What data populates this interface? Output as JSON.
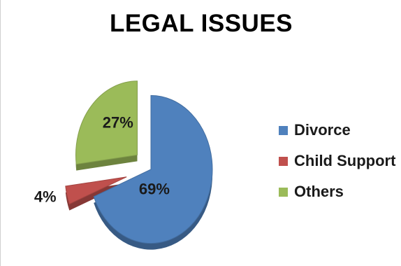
{
  "chart_data": {
    "type": "pie",
    "title": "LEGAL ISSUES",
    "style": "3d-exploded",
    "legend_position": "right",
    "slices": [
      {
        "name": "Divorce",
        "value": 69,
        "label": "69%",
        "color": "#4F81BD"
      },
      {
        "name": "Child Support",
        "value": 4,
        "label": "4%",
        "color": "#C0504D"
      },
      {
        "name": "Others",
        "value": 27,
        "label": "27%",
        "color": "#9BBB59"
      }
    ]
  }
}
